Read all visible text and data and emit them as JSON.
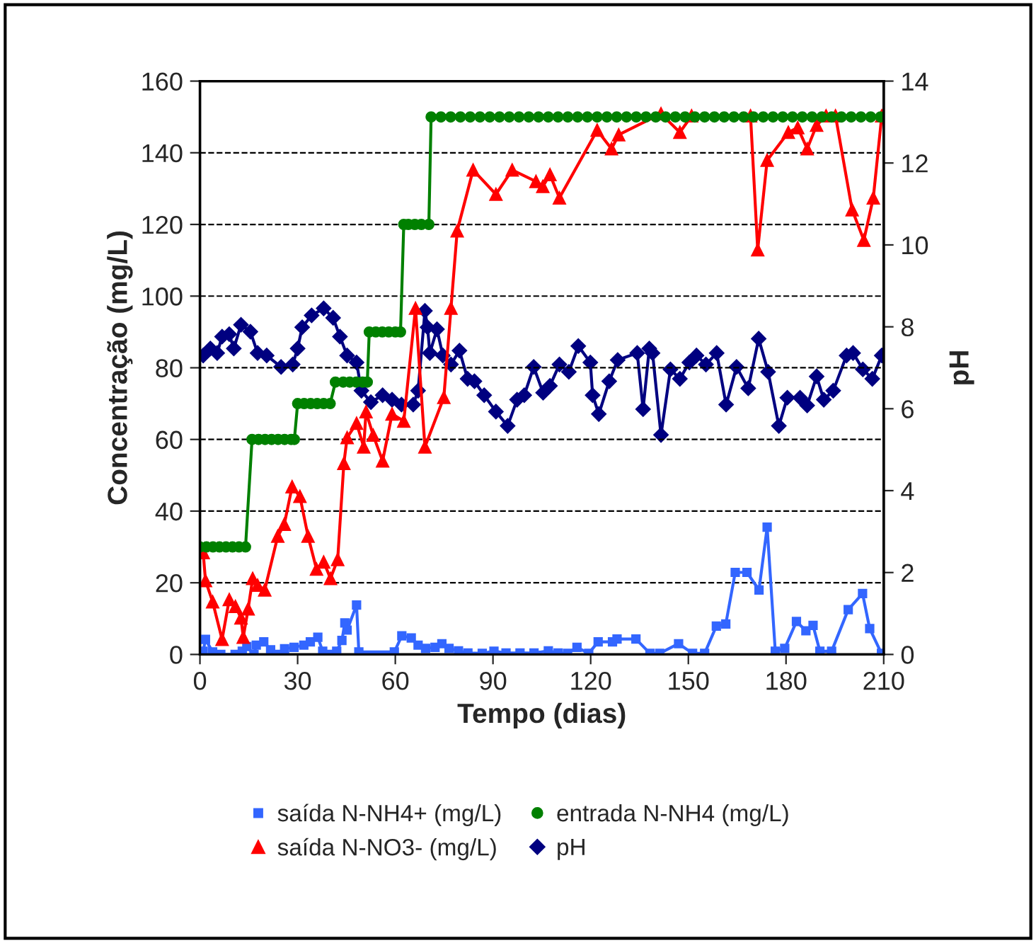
{
  "chart_data": {
    "type": "line",
    "xlabel": "Tempo (dias)",
    "ylabel": "Concentração (mg/L)",
    "y2label": "pH",
    "xlim": [
      0,
      210
    ],
    "xticks": [
      0,
      30,
      60,
      90,
      120,
      150,
      180,
      210
    ],
    "ylim": [
      0,
      160
    ],
    "yticks": [
      0,
      20,
      40,
      60,
      80,
      100,
      120,
      140,
      160
    ],
    "y2lim": [
      0,
      14
    ],
    "y2ticks": [
      0,
      2,
      4,
      6,
      8,
      10,
      12,
      14
    ],
    "grid": "y",
    "legend": "bottom",
    "line_style": "solid",
    "series": [
      {
        "name": "saída N-NH4+ (mg/L)",
        "color": "#3366ff",
        "marker": "square",
        "x": [
          1,
          1.7,
          3.9,
          6.4,
          10.8,
          13,
          14.4,
          16.6,
          17.3,
          19.6,
          21.7,
          23.9,
          26,
          28.9,
          31.9,
          33.9,
          36.2,
          37.7,
          39.9,
          42,
          43.6,
          44.5,
          45.2,
          48.1,
          48.8,
          59.7,
          62,
          64.9,
          67,
          69.3,
          72.2,
          74.3,
          76.5,
          79.4,
          82.3,
          86.7,
          90.3,
          94,
          98.3,
          102.6,
          107,
          110,
          112.9,
          115.8,
          119.4,
          122.3,
          126.7,
          128.1,
          133.9,
          138.2,
          141.2,
          147,
          151.3,
          155,
          158.6,
          161.5,
          164.4,
          168,
          171.7,
          174.2,
          176.7,
          179.6,
          183.2,
          186.1,
          188.3,
          190.4,
          194,
          199.1,
          203.5,
          205.7,
          209.3
        ],
        "values": [
          0.9,
          4.2,
          0.7,
          0,
          0,
          0.9,
          2.2,
          0,
          2.6,
          3.5,
          1.3,
          0,
          1.6,
          2,
          2.6,
          3.5,
          4.8,
          0.9,
          0,
          0.9,
          3.9,
          8.8,
          6.8,
          13.8,
          0.7,
          0.7,
          5.2,
          4.6,
          2.6,
          1.7,
          2,
          3,
          1.7,
          1,
          0.4,
          0.3,
          0.9,
          0.4,
          0.4,
          0.4,
          1,
          0.4,
          0.3,
          2,
          0.3,
          3.5,
          3.5,
          4.3,
          4.3,
          0.3,
          0.3,
          3,
          0.3,
          0.3,
          7.9,
          8.5,
          22.9,
          22.9,
          18,
          35.5,
          0.9,
          1.7,
          9.2,
          6.6,
          8.1,
          0.9,
          0.9,
          12.5,
          17,
          7.2,
          0.3
        ]
      },
      {
        "name": "saída N-NO3- (mg/L)",
        "color": "#ff0000",
        "marker": "triangle",
        "x": [
          1,
          1.7,
          3.9,
          6.8,
          9,
          10.9,
          12.6,
          13.3,
          14.8,
          16.2,
          17.7,
          19.9,
          23.9,
          25.9,
          28.3,
          30.7,
          33.2,
          35.8,
          38,
          40.1,
          42.3,
          44.2,
          45.2,
          48.1,
          50.3,
          51,
          53.2,
          56.1,
          59,
          62.6,
          66.2,
          69.1,
          74.9,
          77.1,
          79,
          83.9,
          90.9,
          95.9,
          103.2,
          105.3,
          107.5,
          110.4,
          122,
          126.4,
          128.6,
          141.6,
          147.4,
          151,
          169.1,
          171.3,
          174.2,
          180.7,
          183.6,
          186.5,
          189.4,
          192.3,
          195.2,
          200.3,
          203.9,
          206.8,
          209.4
        ],
        "values": [
          28.4,
          20.6,
          14.7,
          4.2,
          15.3,
          13.4,
          10.2,
          4.8,
          12.7,
          21.2,
          19.3,
          18,
          33,
          36.3,
          46.8,
          44.1,
          33,
          23.8,
          25.8,
          21.2,
          26.5,
          53.3,
          60.5,
          64.5,
          57.9,
          67.7,
          61.2,
          54,
          67.1,
          65.1,
          96.6,
          57.9,
          71.7,
          96.6,
          118.2,
          135.2,
          128.4,
          135.2,
          132,
          130.6,
          133.9,
          127.4,
          146.3,
          141.1,
          145,
          150.9,
          145.7,
          150.3,
          150.3,
          112.9,
          137.9,
          145.7,
          147,
          141.1,
          147.7,
          150.3,
          150.3,
          124.1,
          115.6,
          127.4,
          150.3
        ]
      },
      {
        "name": "entrada N-NH4 (mg/L)",
        "color": "#008000",
        "marker": "circle",
        "x": [
          0,
          2,
          4,
          6,
          8,
          10,
          12,
          14,
          16,
          18,
          20,
          22,
          24,
          26,
          28,
          29,
          30,
          32,
          34,
          36,
          38,
          40,
          41.6,
          44,
          46,
          48,
          50,
          51.4,
          52,
          54,
          56,
          58,
          60,
          61.6,
          62.6,
          64,
          66,
          68,
          70.3,
          71,
          74,
          77,
          80,
          83,
          86,
          89,
          92,
          95,
          98,
          101,
          104,
          107,
          110,
          113,
          116,
          119,
          122,
          125,
          128,
          131,
          134,
          137,
          140,
          143,
          146,
          149,
          152,
          155,
          158,
          161,
          164,
          167,
          170,
          173,
          176,
          179,
          182,
          185,
          188,
          191,
          194,
          197,
          200,
          203,
          206,
          209
        ],
        "values": [
          30,
          30,
          30,
          30,
          30,
          30,
          30,
          30,
          60,
          60,
          60,
          60,
          60,
          60,
          60,
          60,
          70,
          70,
          70,
          70,
          70,
          70,
          76,
          76,
          76,
          76,
          76,
          76,
          90,
          90,
          90,
          90,
          90,
          90,
          120,
          120,
          120,
          120,
          120,
          150,
          150,
          150,
          150,
          150,
          150,
          150,
          150,
          150,
          150,
          150,
          150,
          150,
          150,
          150,
          150,
          150,
          150,
          150,
          150,
          150,
          150,
          150,
          150,
          150,
          150,
          150,
          150,
          150,
          150,
          150,
          150,
          150,
          150,
          150,
          150,
          150,
          150,
          150,
          150,
          150,
          150,
          150,
          150,
          150,
          150,
          150
        ]
      },
      {
        "name": "pH",
        "color": "#000080",
        "marker": "diamond",
        "axis": "y2",
        "x": [
          1,
          3.2,
          5.3,
          6.8,
          9,
          10.4,
          12.6,
          15.5,
          17.7,
          20.5,
          24.9,
          28.5,
          30,
          31.4,
          34.3,
          38,
          40.9,
          43,
          45.2,
          48.1,
          49.6,
          52.5,
          56.1,
          59,
          61.9,
          65.5,
          67,
          69.1,
          69.9,
          70.6,
          72.8,
          74.6,
          77.1,
          79.7,
          82.2,
          84.3,
          87.3,
          90.9,
          94.5,
          97.4,
          99.6,
          102.5,
          105.4,
          107.5,
          110.4,
          113.3,
          116.2,
          119.9,
          120.6,
          122.5,
          125.7,
          128.3,
          134.3,
          136.1,
          138,
          139,
          141.6,
          144.5,
          147.4,
          150.3,
          152.5,
          155.4,
          158.7,
          161.6,
          164.8,
          168.4,
          171.6,
          174.5,
          177.8,
          180.4,
          184.3,
          186.5,
          189.4,
          191.6,
          194.5,
          198.6,
          200.6,
          203.6,
          206.5,
          209.4
        ],
        "values": [
          7.3,
          7.47,
          7.36,
          7.76,
          7.82,
          7.47,
          8.05,
          7.88,
          7.36,
          7.3,
          7.02,
          7.08,
          7.47,
          7.99,
          8.28,
          8.45,
          8.22,
          7.76,
          7.3,
          7.13,
          6.44,
          6.16,
          6.33,
          6.22,
          6.1,
          6.1,
          6.44,
          8.39,
          7.99,
          7.36,
          7.94,
          7.3,
          7.08,
          7.42,
          6.73,
          6.67,
          6.33,
          5.93,
          5.58,
          6.22,
          6.33,
          7.02,
          6.39,
          6.56,
          7.08,
          6.9,
          7.53,
          7.13,
          6.33,
          5.87,
          6.67,
          7.19,
          7.36,
          5.99,
          7.47,
          7.36,
          5.36,
          6.96,
          6.73,
          7.13,
          7.3,
          7.08,
          7.36,
          6.1,
          7.02,
          6.5,
          7.71,
          6.9,
          5.58,
          6.27,
          6.27,
          6.08,
          6.79,
          6.22,
          6.44,
          7.3,
          7.36,
          6.96,
          6.73,
          7.3
        ]
      }
    ]
  }
}
